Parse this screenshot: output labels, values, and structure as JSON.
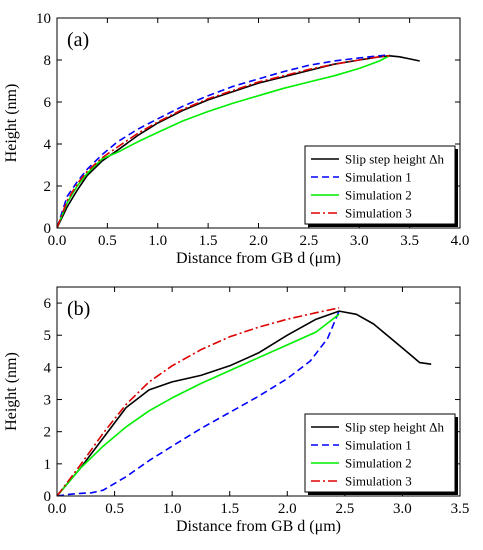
{
  "chart_data": [
    {
      "type": "line",
      "panel_label": "(a)",
      "xlabel": "Distance from GB d (μm)",
      "ylabel": "Height (nm)",
      "xlim": [
        0,
        4
      ],
      "ylim": [
        0,
        10
      ],
      "xticks": [
        0,
        0.5,
        1,
        1.5,
        2,
        2.5,
        3,
        3.5,
        4
      ],
      "xtick_labels": [
        "0.0",
        "0.5",
        "1.0",
        "1.5",
        "2.0",
        "2.5",
        "3.0",
        "3.5",
        "4.0"
      ],
      "yticks": [
        0,
        2,
        4,
        6,
        8,
        10
      ],
      "ytick_labels": [
        "0",
        "2",
        "4",
        "6",
        "8",
        "10"
      ],
      "grid": false,
      "legend_position": "bottom-right",
      "series": [
        {
          "name": "Slip step height Δh",
          "color": "#000000",
          "dash": "solid",
          "x": [
            0,
            0.1,
            0.2,
            0.3,
            0.45,
            0.6,
            0.8,
            1.0,
            1.25,
            1.5,
            1.75,
            2.0,
            2.25,
            2.5,
            2.75,
            3.0,
            3.2,
            3.3,
            3.4,
            3.5,
            3.6
          ],
          "y": [
            0,
            1.0,
            1.8,
            2.5,
            3.2,
            3.7,
            4.4,
            5.0,
            5.6,
            6.1,
            6.5,
            6.9,
            7.2,
            7.5,
            7.8,
            8.0,
            8.15,
            8.2,
            8.15,
            8.05,
            7.95
          ]
        },
        {
          "name": "Simulation 1",
          "color": "#0000ff",
          "dash": "dashed",
          "x": [
            0,
            0.1,
            0.2,
            0.3,
            0.45,
            0.6,
            0.8,
            1.0,
            1.25,
            1.5,
            1.75,
            2.0,
            2.25,
            2.5,
            2.75,
            3.0,
            3.2,
            3.3
          ],
          "y": [
            0,
            1.5,
            2.2,
            2.8,
            3.5,
            4.1,
            4.7,
            5.2,
            5.8,
            6.3,
            6.75,
            7.1,
            7.45,
            7.75,
            7.95,
            8.1,
            8.2,
            8.25
          ]
        },
        {
          "name": "Simulation 2",
          "color": "#00ee00",
          "dash": "solid",
          "x": [
            0,
            0.1,
            0.2,
            0.3,
            0.45,
            0.6,
            0.8,
            1.0,
            1.25,
            1.5,
            1.75,
            2.0,
            2.25,
            2.5,
            2.75,
            3.0,
            3.2,
            3.3
          ],
          "y": [
            0,
            1.2,
            2.0,
            2.6,
            3.3,
            3.6,
            4.1,
            4.55,
            5.1,
            5.55,
            5.95,
            6.3,
            6.65,
            6.95,
            7.25,
            7.6,
            7.95,
            8.2
          ]
        },
        {
          "name": "Simulation 3",
          "color": "#dd0000",
          "dash": "dashdot",
          "x": [
            0,
            0.1,
            0.2,
            0.3,
            0.45,
            0.6,
            0.8,
            1.0,
            1.25,
            1.5,
            1.75,
            2.0,
            2.25,
            2.5,
            2.75,
            3.0,
            3.2,
            3.3
          ],
          "y": [
            0,
            1.3,
            2.1,
            2.7,
            3.35,
            3.85,
            4.5,
            5.05,
            5.65,
            6.15,
            6.55,
            6.95,
            7.25,
            7.55,
            7.8,
            8.0,
            8.15,
            8.2
          ]
        }
      ]
    },
    {
      "type": "line",
      "panel_label": "(b)",
      "xlabel": "Distance from GB d (μm)",
      "ylabel": "Height (nm)",
      "xlim": [
        0,
        3.5
      ],
      "ylim": [
        0,
        6.5
      ],
      "xticks": [
        0,
        0.5,
        1,
        1.5,
        2,
        2.5,
        3,
        3.5
      ],
      "xtick_labels": [
        "0.0",
        "0.5",
        "1.0",
        "1.5",
        "2.0",
        "2.5",
        "3.0",
        "3.5"
      ],
      "yticks": [
        0,
        1,
        2,
        3,
        4,
        5,
        6
      ],
      "ytick_labels": [
        "0",
        "1",
        "2",
        "3",
        "4",
        "5",
        "6"
      ],
      "grid": false,
      "legend_position": "bottom-right",
      "series": [
        {
          "name": "Slip step height Δh",
          "color": "#000000",
          "dash": "solid",
          "x": [
            0,
            0.2,
            0.4,
            0.6,
            0.8,
            1.0,
            1.25,
            1.5,
            1.75,
            2.0,
            2.25,
            2.45,
            2.6,
            2.75,
            2.9,
            3.05,
            3.15,
            3.25
          ],
          "y": [
            0,
            0.85,
            1.8,
            2.75,
            3.3,
            3.55,
            3.75,
            4.05,
            4.45,
            5.0,
            5.5,
            5.75,
            5.65,
            5.35,
            4.9,
            4.45,
            4.15,
            4.1
          ]
        },
        {
          "name": "Simulation 1",
          "color": "#0000ff",
          "dash": "dashed",
          "x": [
            0,
            0.1,
            0.2,
            0.3,
            0.4,
            0.6,
            0.8,
            1.0,
            1.25,
            1.5,
            1.75,
            2.0,
            2.2,
            2.35,
            2.45
          ],
          "y": [
            0,
            0.05,
            0.08,
            0.1,
            0.18,
            0.6,
            1.1,
            1.55,
            2.1,
            2.6,
            3.1,
            3.65,
            4.2,
            4.9,
            5.75
          ]
        },
        {
          "name": "Simulation 2",
          "color": "#00ee00",
          "dash": "solid",
          "x": [
            0,
            0.2,
            0.4,
            0.6,
            0.8,
            1.0,
            1.25,
            1.5,
            1.75,
            2.0,
            2.25,
            2.45
          ],
          "y": [
            0,
            0.85,
            1.55,
            2.15,
            2.65,
            3.05,
            3.5,
            3.9,
            4.3,
            4.7,
            5.1,
            5.65
          ]
        },
        {
          "name": "Simulation 3",
          "color": "#dd0000",
          "dash": "dashdot",
          "x": [
            0,
            0.2,
            0.4,
            0.6,
            0.8,
            1.0,
            1.25,
            1.5,
            1.75,
            2.0,
            2.25,
            2.45
          ],
          "y": [
            0,
            0.95,
            1.95,
            2.85,
            3.55,
            4.05,
            4.55,
            4.95,
            5.25,
            5.5,
            5.7,
            5.85
          ]
        }
      ]
    }
  ]
}
